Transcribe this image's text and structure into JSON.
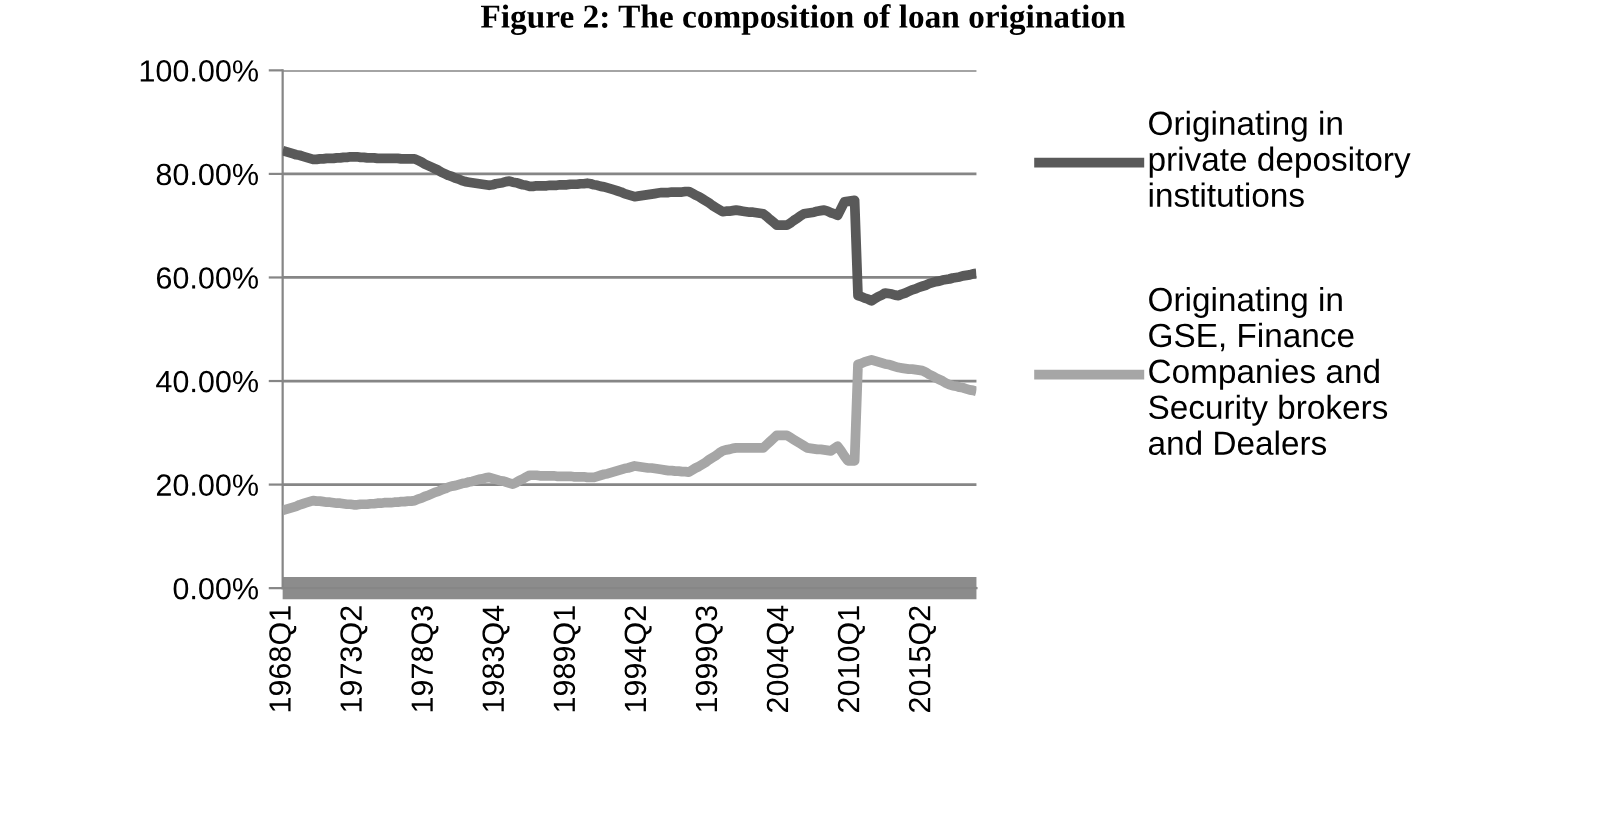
{
  "chart_data": {
    "type": "line",
    "title": "Figure 2: The composition of loan origination",
    "categories": [
      "1968Q1",
      null,
      null,
      null,
      null,
      null,
      null,
      null,
      null,
      null,
      null,
      null,
      null,
      null,
      null,
      null,
      null,
      null,
      null,
      null,
      null,
      "1973Q2",
      null,
      null,
      null,
      null,
      null,
      null,
      null,
      null,
      null,
      null,
      null,
      null,
      null,
      null,
      null,
      null,
      null,
      null,
      null,
      null,
      "1978Q3",
      null,
      null,
      null,
      null,
      null,
      null,
      null,
      null,
      null,
      null,
      null,
      null,
      null,
      null,
      null,
      null,
      null,
      null,
      null,
      null,
      "1983Q4",
      null,
      null,
      null,
      null,
      null,
      null,
      null,
      null,
      null,
      null,
      null,
      null,
      null,
      null,
      null,
      null,
      null,
      null,
      null,
      null,
      "1989Q1",
      null,
      null,
      null,
      null,
      null,
      null,
      null,
      null,
      null,
      null,
      null,
      null,
      null,
      null,
      null,
      null,
      null,
      null,
      null,
      null,
      "1994Q2",
      null,
      null,
      null,
      null,
      null,
      null,
      null,
      null,
      null,
      null,
      null,
      null,
      null,
      null,
      null,
      null,
      null,
      null,
      null,
      null,
      "1999Q3",
      null,
      null,
      null,
      null,
      null,
      null,
      null,
      null,
      null,
      null,
      null,
      null,
      null,
      null,
      null,
      null,
      null,
      null,
      null,
      null,
      "2004Q4",
      null,
      null,
      null,
      null,
      null,
      null,
      null,
      null,
      null,
      null,
      null,
      null,
      null,
      null,
      null,
      null,
      null,
      null,
      null,
      null,
      "2010Q1",
      null,
      null,
      null,
      null,
      null,
      null,
      null,
      null,
      null,
      null,
      null,
      null,
      null,
      null,
      null,
      null,
      null,
      null,
      null,
      null,
      "2015Q2",
      null,
      null,
      null,
      null,
      null,
      null,
      null,
      null,
      null,
      null,
      null,
      null,
      null,
      null,
      null,
      null
    ],
    "ylim": [
      0,
      100
    ],
    "yticks": [
      {
        "value": 0,
        "label": "0.00%"
      },
      {
        "value": 20,
        "label": "20.00%"
      },
      {
        "value": 40,
        "label": "40.00%"
      },
      {
        "value": 60,
        "label": "60.00%"
      },
      {
        "value": 80,
        "label": "80.00%"
      },
      {
        "value": 100,
        "label": "100.00%"
      }
    ],
    "grid": "y",
    "legend": "right",
    "marker": "none",
    "line_style": "solid",
    "series": [
      {
        "name": "Originating in\nprivate depository\ninstitutions",
        "color": "#595959",
        "values": [
          84.5,
          84.3,
          84.1,
          83.9,
          83.7,
          83.6,
          83.4,
          83.2,
          83.0,
          82.8,
          82.8,
          82.9,
          82.9,
          83.0,
          83.0,
          83.0,
          83.1,
          83.1,
          83.2,
          83.2,
          83.3,
          83.3,
          83.3,
          83.2,
          83.2,
          83.1,
          83.1,
          83.1,
          83.0,
          83.0,
          83.0,
          83.0,
          83.0,
          83.0,
          83.0,
          82.9,
          82.9,
          82.9,
          82.9,
          82.9,
          82.6,
          82.3,
          81.9,
          81.6,
          81.3,
          81.0,
          80.7,
          80.3,
          80.0,
          79.7,
          79.5,
          79.2,
          79.0,
          78.7,
          78.5,
          78.4,
          78.3,
          78.2,
          78.1,
          78.0,
          77.9,
          77.8,
          77.9,
          78.1,
          78.2,
          78.3,
          78.5,
          78.6,
          78.4,
          78.3,
          78.1,
          77.9,
          77.8,
          77.6,
          77.6,
          77.7,
          77.7,
          77.7,
          77.7,
          77.8,
          77.8,
          77.8,
          77.9,
          77.9,
          77.9,
          78.0,
          78.0,
          78.0,
          78.1,
          78.1,
          78.2,
          78.1,
          77.9,
          77.8,
          77.6,
          77.5,
          77.3,
          77.1,
          76.9,
          76.7,
          76.5,
          76.2,
          76.0,
          75.8,
          75.6,
          75.7,
          75.8,
          75.9,
          76.0,
          76.1,
          76.2,
          76.3,
          76.4,
          76.4,
          76.4,
          76.5,
          76.5,
          76.5,
          76.5,
          76.6,
          76.6,
          76.3,
          75.9,
          75.6,
          75.2,
          74.8,
          74.4,
          73.9,
          73.5,
          73.1,
          72.7,
          72.8,
          72.8,
          72.9,
          73.0,
          72.9,
          72.8,
          72.7,
          72.6,
          72.6,
          72.5,
          72.4,
          72.3,
          71.8,
          71.2,
          70.7,
          70.1,
          70.1,
          70.1,
          70.1,
          70.5,
          71.0,
          71.4,
          71.9,
          72.3,
          72.4,
          72.5,
          72.6,
          72.8,
          72.9,
          73.0,
          72.8,
          72.5,
          72.3,
          72.0,
          73.3,
          74.6,
          74.7,
          74.8,
          74.9,
          56.5,
          56.3,
          56.0,
          55.8,
          55.5,
          55.9,
          56.3,
          56.6,
          57.0,
          56.9,
          56.8,
          56.6,
          56.5,
          56.8,
          57.0,
          57.3,
          57.6,
          57.8,
          58.1,
          58.3,
          58.5,
          58.8,
          59.0,
          59.2,
          59.3,
          59.5,
          59.6,
          59.7,
          59.9,
          60.0,
          60.1,
          60.3,
          60.4,
          60.5,
          60.7,
          60.8
        ]
      },
      {
        "name": "Originating in\nGSE, Finance\nCompanies and\nSecurity brokers\nand Dealers",
        "color": "#a6a6a6",
        "values": [
          15.0,
          15.2,
          15.4,
          15.6,
          15.8,
          16.1,
          16.3,
          16.5,
          16.7,
          16.9,
          16.8,
          16.8,
          16.7,
          16.6,
          16.6,
          16.5,
          16.4,
          16.4,
          16.3,
          16.2,
          16.2,
          16.1,
          16.1,
          16.2,
          16.2,
          16.2,
          16.3,
          16.3,
          16.4,
          16.4,
          16.5,
          16.5,
          16.5,
          16.6,
          16.6,
          16.7,
          16.7,
          16.8,
          16.8,
          16.9,
          17.2,
          17.4,
          17.7,
          17.9,
          18.2,
          18.5,
          18.7,
          19.0,
          19.2,
          19.5,
          19.7,
          19.8,
          20.0,
          20.2,
          20.3,
          20.5,
          20.6,
          20.8,
          21.0,
          21.1,
          21.3,
          21.4,
          21.2,
          21.0,
          20.8,
          20.7,
          20.5,
          20.3,
          20.1,
          20.4,
          20.8,
          21.1,
          21.5,
          21.8,
          21.8,
          21.8,
          21.7,
          21.7,
          21.7,
          21.7,
          21.7,
          21.6,
          21.6,
          21.6,
          21.6,
          21.6,
          21.5,
          21.5,
          21.5,
          21.5,
          21.4,
          21.4,
          21.4,
          21.6,
          21.8,
          22.0,
          22.1,
          22.3,
          22.5,
          22.7,
          22.9,
          23.1,
          23.2,
          23.4,
          23.6,
          23.5,
          23.4,
          23.3,
          23.2,
          23.2,
          23.1,
          23.0,
          22.9,
          22.8,
          22.7,
          22.7,
          22.6,
          22.6,
          22.5,
          22.5,
          22.4,
          22.8,
          23.2,
          23.5,
          23.9,
          24.3,
          24.8,
          25.2,
          25.6,
          26.1,
          26.5,
          26.7,
          26.8,
          27.0,
          27.1,
          27.1,
          27.1,
          27.1,
          27.1,
          27.1,
          27.1,
          27.1,
          27.1,
          27.7,
          28.3,
          28.9,
          29.5,
          29.5,
          29.5,
          29.5,
          29.1,
          28.7,
          28.3,
          27.9,
          27.5,
          27.1,
          27.0,
          26.9,
          26.8,
          26.8,
          26.7,
          26.6,
          26.5,
          27.0,
          27.4,
          26.5,
          25.5,
          24.6,
          24.6,
          24.6,
          43.2,
          43.4,
          43.7,
          43.9,
          44.1,
          43.9,
          43.7,
          43.5,
          43.3,
          43.2,
          43.0,
          42.8,
          42.6,
          42.5,
          42.4,
          42.3,
          42.3,
          42.2,
          42.1,
          42.0,
          41.7,
          41.3,
          41.0,
          40.6,
          40.3,
          40.0,
          39.6,
          39.3,
          39.1,
          39.0,
          38.8,
          38.7,
          38.5,
          38.3,
          38.2,
          38.0
        ]
      },
      {
        "color": "#8c8c8c",
        "values": [
          0,
          0,
          0,
          0,
          0,
          0,
          0,
          0,
          0,
          0,
          0,
          0,
          0,
          0,
          0,
          0,
          0,
          0,
          0,
          0,
          0,
          0,
          0,
          0,
          0,
          0,
          0,
          0,
          0,
          0,
          0,
          0,
          0,
          0,
          0,
          0,
          0,
          0,
          0,
          0,
          0,
          0,
          0,
          0,
          0,
          0,
          0,
          0,
          0,
          0,
          0,
          0,
          0,
          0,
          0,
          0,
          0,
          0,
          0,
          0,
          0,
          0,
          0,
          0,
          0,
          0,
          0,
          0,
          0,
          0,
          0,
          0,
          0,
          0,
          0,
          0,
          0,
          0,
          0,
          0,
          0,
          0,
          0,
          0,
          0,
          0,
          0,
          0,
          0,
          0,
          0,
          0,
          0,
          0,
          0,
          0,
          0,
          0,
          0,
          0,
          0,
          0,
          0,
          0,
          0,
          0,
          0,
          0,
          0,
          0,
          0,
          0,
          0,
          0,
          0,
          0,
          0,
          0,
          0,
          0,
          0,
          0,
          0,
          0,
          0,
          0,
          0,
          0,
          0,
          0,
          0,
          0,
          0,
          0,
          0,
          0,
          0,
          0,
          0,
          0,
          0,
          0,
          0,
          0,
          0,
          0,
          0,
          0,
          0,
          0,
          0,
          0,
          0,
          0,
          0,
          0,
          0,
          0,
          0,
          0,
          0,
          0,
          0,
          0,
          0,
          0,
          0,
          0,
          0,
          0,
          0,
          0,
          0,
          0,
          0,
          0,
          0,
          0,
          0,
          0,
          0,
          0,
          0,
          0,
          0,
          0,
          0,
          0,
          0,
          0,
          0,
          0,
          0,
          0,
          0,
          0,
          0,
          0,
          0,
          0,
          0,
          0,
          0,
          0,
          0,
          0
        ]
      }
    ]
  }
}
